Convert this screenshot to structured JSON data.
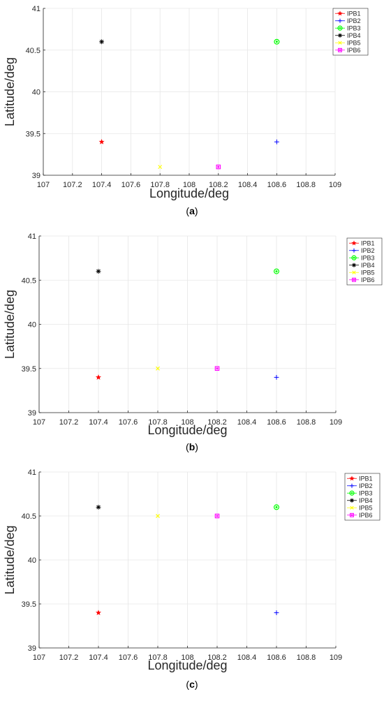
{
  "chart_data": [
    {
      "type": "scatter",
      "panel_label": "a",
      "xlabel": "Longitude/deg",
      "ylabel": "Latitude/deg",
      "xlim": [
        107,
        109
      ],
      "ylim": [
        39,
        41
      ],
      "xticks": [
        "107",
        "107.2",
        "107.4",
        "107.6",
        "107.8",
        "108",
        "108.2",
        "108.4",
        "108.6",
        "108.8",
        "109"
      ],
      "yticks": [
        "39",
        "39.5",
        "40",
        "40.5",
        "41"
      ],
      "grid": true,
      "legend_position": "top-right",
      "series": [
        {
          "name": "IPB1",
          "marker": "pentagram",
          "color": "#ff0000",
          "x": [
            107.4
          ],
          "y": [
            39.4
          ]
        },
        {
          "name": "IPB2",
          "marker": "plus",
          "color": "#0000ff",
          "x": [
            108.6
          ],
          "y": [
            39.4
          ]
        },
        {
          "name": "IPB3",
          "marker": "circle",
          "color": "#00ff00",
          "x": [
            108.6
          ],
          "y": [
            40.6
          ]
        },
        {
          "name": "IPB4",
          "marker": "asterisk",
          "color": "#000000",
          "x": [
            107.4
          ],
          "y": [
            40.6
          ]
        },
        {
          "name": "IPB5",
          "marker": "cross",
          "color": "#ffff00",
          "x": [
            107.8
          ],
          "y": [
            39.1
          ]
        },
        {
          "name": "IPB6",
          "marker": "square",
          "color": "#ff00ff",
          "x": [
            108.2
          ],
          "y": [
            39.1
          ]
        }
      ]
    },
    {
      "type": "scatter",
      "panel_label": "b",
      "xlabel": "Longitude/deg",
      "ylabel": "Latitude/deg",
      "xlim": [
        107,
        109
      ],
      "ylim": [
        39,
        41
      ],
      "xticks": [
        "107",
        "107.2",
        "107.4",
        "107.6",
        "107.8",
        "108",
        "108.2",
        "108.4",
        "108.6",
        "108.8",
        "109"
      ],
      "yticks": [
        "39",
        "39.5",
        "40",
        "40.5",
        "41"
      ],
      "grid": true,
      "legend_position": "top-right",
      "series": [
        {
          "name": "IPB1",
          "marker": "pentagram",
          "color": "#ff0000",
          "x": [
            107.4
          ],
          "y": [
            39.4
          ]
        },
        {
          "name": "IPB2",
          "marker": "plus",
          "color": "#0000ff",
          "x": [
            108.6
          ],
          "y": [
            39.4
          ]
        },
        {
          "name": "IPB3",
          "marker": "circle",
          "color": "#00ff00",
          "x": [
            108.6
          ],
          "y": [
            40.6
          ]
        },
        {
          "name": "IPB4",
          "marker": "asterisk",
          "color": "#000000",
          "x": [
            107.4
          ],
          "y": [
            40.6
          ]
        },
        {
          "name": "IPB5",
          "marker": "cross",
          "color": "#ffff00",
          "x": [
            107.8
          ],
          "y": [
            39.5
          ]
        },
        {
          "name": "IPB6",
          "marker": "square",
          "color": "#ff00ff",
          "x": [
            108.2
          ],
          "y": [
            39.5
          ]
        }
      ]
    },
    {
      "type": "scatter",
      "panel_label": "c",
      "xlabel": "Longitude/deg",
      "ylabel": "Latitude/deg",
      "xlim": [
        107,
        109
      ],
      "ylim": [
        39,
        41
      ],
      "xticks": [
        "107",
        "107.2",
        "107.4",
        "107.6",
        "107.8",
        "108",
        "108.2",
        "108.4",
        "108.6",
        "108.8",
        "109"
      ],
      "yticks": [
        "39",
        "39.5",
        "40",
        "40.5",
        "41"
      ],
      "grid": true,
      "legend_position": "top-right",
      "series": [
        {
          "name": "IPB1",
          "marker": "pentagram",
          "color": "#ff0000",
          "x": [
            107.4
          ],
          "y": [
            39.4
          ]
        },
        {
          "name": "IPB2",
          "marker": "plus",
          "color": "#0000ff",
          "x": [
            108.6
          ],
          "y": [
            39.4
          ]
        },
        {
          "name": "IPB3",
          "marker": "circle",
          "color": "#00ff00",
          "x": [
            108.6
          ],
          "y": [
            40.6
          ]
        },
        {
          "name": "IPB4",
          "marker": "asterisk",
          "color": "#000000",
          "x": [
            107.4
          ],
          "y": [
            40.6
          ]
        },
        {
          "name": "IPB5",
          "marker": "cross",
          "color": "#ffff00",
          "x": [
            107.8
          ],
          "y": [
            40.5
          ]
        },
        {
          "name": "IPB6",
          "marker": "square",
          "color": "#ff00ff",
          "x": [
            108.2
          ],
          "y": [
            40.5
          ]
        }
      ]
    }
  ]
}
